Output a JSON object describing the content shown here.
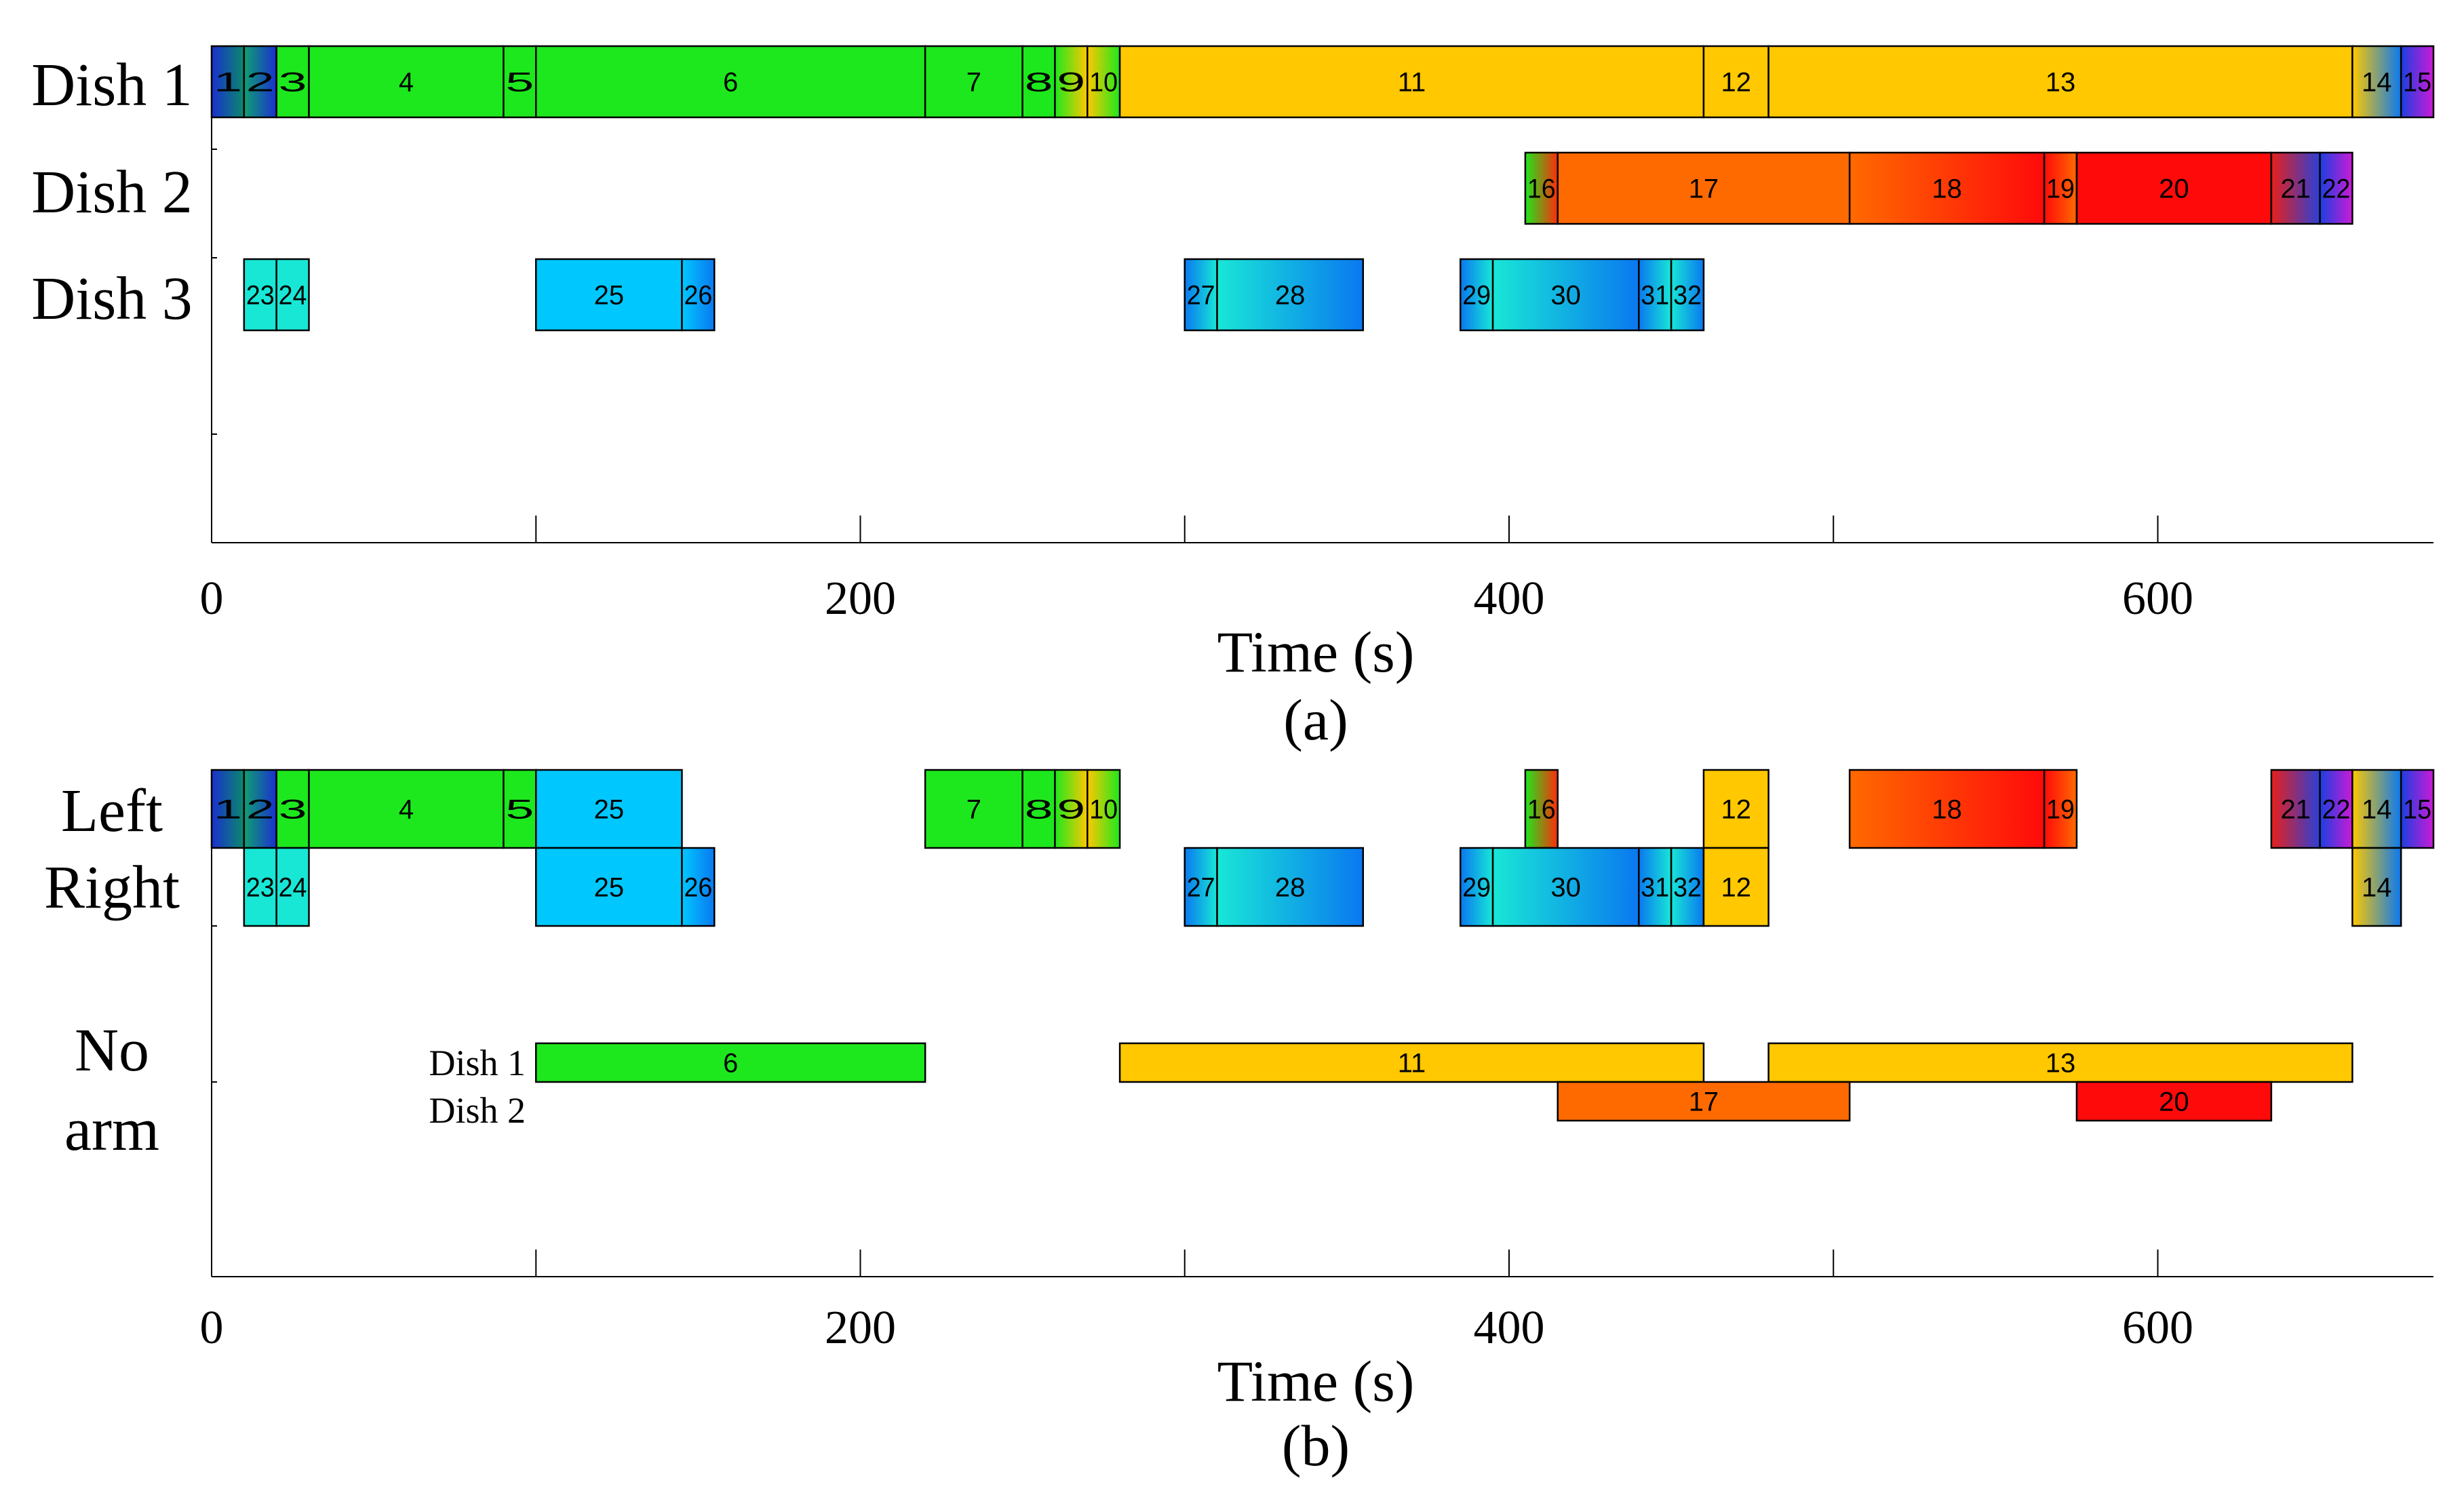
{
  "colors": {
    "green": "#1de81d",
    "yellow": "#ffc800",
    "orange": "#ff6a00",
    "red": "#ff0a0a",
    "cyan": "#00d0ff",
    "cyan_light": "#18e7d6",
    "blue": "#0a78f0",
    "navy": "#1a2fd0",
    "magenta": "#cc1ad6"
  },
  "chart_data": [
    {
      "id": "a",
      "type": "gantt",
      "caption": "(a)",
      "xlabel": "Time (s)",
      "xlim": [
        0,
        685
      ],
      "xticks": [
        0,
        200,
        400,
        600
      ],
      "minor_ticks": [
        100,
        300,
        500
      ],
      "rows": [
        {
          "label": "Dish 1"
        },
        {
          "label": "Dish 2"
        },
        {
          "label": "Dish 3"
        }
      ],
      "tasks": [
        {
          "id": "1",
          "row": 0,
          "start": 0,
          "end": 10,
          "fill": [
            "#1a2fd0",
            "#0a8a6a"
          ]
        },
        {
          "id": "2",
          "row": 0,
          "start": 10,
          "end": 20,
          "fill": [
            "#10a070",
            "#1a2fd0"
          ]
        },
        {
          "id": "3",
          "row": 0,
          "start": 20,
          "end": 30,
          "fill": [
            "#1de81d"
          ]
        },
        {
          "id": "4",
          "row": 0,
          "start": 30,
          "end": 90,
          "fill": [
            "#1de81d"
          ]
        },
        {
          "id": "5",
          "row": 0,
          "start": 90,
          "end": 100,
          "fill": [
            "#1de81d"
          ]
        },
        {
          "id": "6",
          "row": 0,
          "start": 100,
          "end": 220,
          "fill": [
            "#1de81d"
          ]
        },
        {
          "id": "7",
          "row": 0,
          "start": 220,
          "end": 250,
          "fill": [
            "#1de81d"
          ]
        },
        {
          "id": "8",
          "row": 0,
          "start": 250,
          "end": 260,
          "fill": [
            "#1de81d"
          ]
        },
        {
          "id": "9",
          "row": 0,
          "start": 260,
          "end": 270,
          "fill": [
            "#1de81d",
            "#ffc800"
          ]
        },
        {
          "id": "10",
          "row": 0,
          "start": 270,
          "end": 280,
          "fill": [
            "#ffc800",
            "#1de81d"
          ]
        },
        {
          "id": "11",
          "row": 0,
          "start": 280,
          "end": 460,
          "fill": [
            "#ffc800"
          ]
        },
        {
          "id": "12",
          "row": 0,
          "start": 460,
          "end": 480,
          "fill": [
            "#ffc800"
          ]
        },
        {
          "id": "13",
          "row": 0,
          "start": 480,
          "end": 660,
          "fill": [
            "#ffc800"
          ]
        },
        {
          "id": "14",
          "row": 0,
          "start": 660,
          "end": 675,
          "fill": [
            "#ffc800",
            "#0a78f0"
          ]
        },
        {
          "id": "15",
          "row": 0,
          "start": 675,
          "end": 685,
          "fill": [
            "#1a40e0",
            "#cc1ad6"
          ]
        },
        {
          "id": "16",
          "row": 1,
          "start": 405,
          "end": 415,
          "fill": [
            "#1de81d",
            "#ff2a0a"
          ]
        },
        {
          "id": "17",
          "row": 1,
          "start": 415,
          "end": 505,
          "fill": [
            "#ff6a00"
          ]
        },
        {
          "id": "18",
          "row": 1,
          "start": 505,
          "end": 565,
          "fill": [
            "#ff6a00",
            "#ff0a0a"
          ]
        },
        {
          "id": "19",
          "row": 1,
          "start": 565,
          "end": 575,
          "fill": [
            "#ff0a0a",
            "#ff6a00"
          ]
        },
        {
          "id": "20",
          "row": 1,
          "start": 575,
          "end": 635,
          "fill": [
            "#ff0a0a"
          ]
        },
        {
          "id": "21",
          "row": 1,
          "start": 635,
          "end": 650,
          "fill": [
            "#e8201a",
            "#2a40d8"
          ]
        },
        {
          "id": "22",
          "row": 1,
          "start": 650,
          "end": 660,
          "fill": [
            "#1a40e0",
            "#cc1ad6"
          ]
        },
        {
          "id": "23",
          "row": 2,
          "start": 10,
          "end": 20,
          "fill": [
            "#18e7d6"
          ]
        },
        {
          "id": "24",
          "row": 2,
          "start": 20,
          "end": 30,
          "fill": [
            "#18e7d6"
          ]
        },
        {
          "id": "25",
          "row": 2,
          "start": 100,
          "end": 145,
          "fill": [
            "#00c8ff"
          ]
        },
        {
          "id": "26",
          "row": 2,
          "start": 145,
          "end": 155,
          "fill": [
            "#00c8ff",
            "#0a78f0"
          ]
        },
        {
          "id": "27",
          "row": 2,
          "start": 300,
          "end": 310,
          "fill": [
            "#0a78f0",
            "#18e7d6"
          ]
        },
        {
          "id": "28",
          "row": 2,
          "start": 310,
          "end": 355,
          "fill": [
            "#18e7d6",
            "#0a78f0"
          ]
        },
        {
          "id": "29",
          "row": 2,
          "start": 385,
          "end": 395,
          "fill": [
            "#0a78f0",
            "#18e7d6"
          ]
        },
        {
          "id": "30",
          "row": 2,
          "start": 395,
          "end": 440,
          "fill": [
            "#18e7d6",
            "#0a78f0"
          ]
        },
        {
          "id": "31",
          "row": 2,
          "start": 440,
          "end": 450,
          "fill": [
            "#0a78f0",
            "#18e7d6"
          ]
        },
        {
          "id": "32",
          "row": 2,
          "start": 450,
          "end": 460,
          "fill": [
            "#18e7d6",
            "#0a78f0"
          ]
        }
      ]
    },
    {
      "id": "b",
      "type": "gantt",
      "caption": "(b)",
      "xlabel": "Time (s)",
      "xlim": [
        0,
        685
      ],
      "xticks": [
        0,
        200,
        400,
        600
      ],
      "minor_ticks": [
        100,
        300,
        500
      ],
      "rows": [
        {
          "label": "Left"
        },
        {
          "label": "Right"
        },
        {
          "label": "No"
        },
        {
          "label": "arm"
        }
      ],
      "sub_labels": [
        "Dish 1",
        "Dish 2"
      ],
      "tasks": [
        {
          "id": "1",
          "lane": "left",
          "start": 0,
          "end": 10,
          "fill": [
            "#1a2fd0",
            "#0a8a6a"
          ]
        },
        {
          "id": "2",
          "lane": "left",
          "start": 10,
          "end": 20,
          "fill": [
            "#10a070",
            "#1a2fd0"
          ]
        },
        {
          "id": "3",
          "lane": "left",
          "start": 20,
          "end": 30,
          "fill": [
            "#1de81d"
          ]
        },
        {
          "id": "4",
          "lane": "left",
          "start": 30,
          "end": 90,
          "fill": [
            "#1de81d"
          ]
        },
        {
          "id": "5",
          "lane": "left",
          "start": 90,
          "end": 100,
          "fill": [
            "#1de81d"
          ]
        },
        {
          "id": "25",
          "lane": "left",
          "start": 100,
          "end": 145,
          "fill": [
            "#00c8ff"
          ]
        },
        {
          "id": "7",
          "lane": "left",
          "start": 220,
          "end": 250,
          "fill": [
            "#1de81d"
          ]
        },
        {
          "id": "8",
          "lane": "left",
          "start": 250,
          "end": 260,
          "fill": [
            "#1de81d"
          ]
        },
        {
          "id": "9",
          "lane": "left",
          "start": 260,
          "end": 270,
          "fill": [
            "#1de81d",
            "#ffc800"
          ]
        },
        {
          "id": "10",
          "lane": "left",
          "start": 270,
          "end": 280,
          "fill": [
            "#ffc800",
            "#1de81d"
          ]
        },
        {
          "id": "16",
          "lane": "left",
          "start": 405,
          "end": 415,
          "fill": [
            "#1de81d",
            "#ff2a0a"
          ]
        },
        {
          "id": "12",
          "lane": "left",
          "start": 460,
          "end": 480,
          "fill": [
            "#ffc800"
          ]
        },
        {
          "id": "18",
          "lane": "left",
          "start": 505,
          "end": 565,
          "fill": [
            "#ff6a00",
            "#ff0a0a"
          ]
        },
        {
          "id": "19",
          "lane": "left",
          "start": 565,
          "end": 575,
          "fill": [
            "#ff0a0a",
            "#ff6a00"
          ]
        },
        {
          "id": "21",
          "lane": "left",
          "start": 635,
          "end": 650,
          "fill": [
            "#e8201a",
            "#2a40d8"
          ]
        },
        {
          "id": "22",
          "lane": "left",
          "start": 650,
          "end": 660,
          "fill": [
            "#1a40e0",
            "#cc1ad6"
          ]
        },
        {
          "id": "14",
          "lane": "left",
          "start": 660,
          "end": 675,
          "fill": [
            "#ffc800",
            "#0a78f0"
          ]
        },
        {
          "id": "15",
          "lane": "left",
          "start": 675,
          "end": 685,
          "fill": [
            "#1a40e0",
            "#cc1ad6"
          ]
        },
        {
          "id": "23",
          "lane": "right",
          "start": 10,
          "end": 20,
          "fill": [
            "#18e7d6"
          ]
        },
        {
          "id": "24",
          "lane": "right",
          "start": 20,
          "end": 30,
          "fill": [
            "#18e7d6"
          ]
        },
        {
          "id": "25",
          "lane": "right",
          "start": 100,
          "end": 145,
          "fill": [
            "#00c8ff"
          ]
        },
        {
          "id": "26",
          "lane": "right",
          "start": 145,
          "end": 155,
          "fill": [
            "#00c8ff",
            "#0a78f0"
          ]
        },
        {
          "id": "27",
          "lane": "right",
          "start": 300,
          "end": 310,
          "fill": [
            "#0a78f0",
            "#18e7d6"
          ]
        },
        {
          "id": "28",
          "lane": "right",
          "start": 310,
          "end": 355,
          "fill": [
            "#18e7d6",
            "#0a78f0"
          ]
        },
        {
          "id": "29",
          "lane": "right",
          "start": 385,
          "end": 395,
          "fill": [
            "#0a78f0",
            "#18e7d6"
          ]
        },
        {
          "id": "30",
          "lane": "right",
          "start": 395,
          "end": 440,
          "fill": [
            "#18e7d6",
            "#0a78f0"
          ]
        },
        {
          "id": "31",
          "lane": "right",
          "start": 440,
          "end": 450,
          "fill": [
            "#0a78f0",
            "#18e7d6"
          ]
        },
        {
          "id": "32",
          "lane": "right",
          "start": 450,
          "end": 460,
          "fill": [
            "#18e7d6",
            "#0a78f0"
          ]
        },
        {
          "id": "12",
          "lane": "right",
          "start": 460,
          "end": 480,
          "fill": [
            "#ffc800"
          ]
        },
        {
          "id": "14",
          "lane": "right",
          "start": 660,
          "end": 675,
          "fill": [
            "#ffc800",
            "#0a78f0"
          ]
        },
        {
          "id": "6",
          "lane": "dish1",
          "start": 100,
          "end": 220,
          "fill": [
            "#1de81d"
          ]
        },
        {
          "id": "11",
          "lane": "dish1",
          "start": 280,
          "end": 460,
          "fill": [
            "#ffc800"
          ]
        },
        {
          "id": "13",
          "lane": "dish1",
          "start": 480,
          "end": 660,
          "fill": [
            "#ffc800"
          ]
        },
        {
          "id": "17",
          "lane": "dish2",
          "start": 415,
          "end": 505,
          "fill": [
            "#ff6a00"
          ]
        },
        {
          "id": "20",
          "lane": "dish2",
          "start": 575,
          "end": 635,
          "fill": [
            "#ff0a0a"
          ]
        }
      ]
    }
  ]
}
